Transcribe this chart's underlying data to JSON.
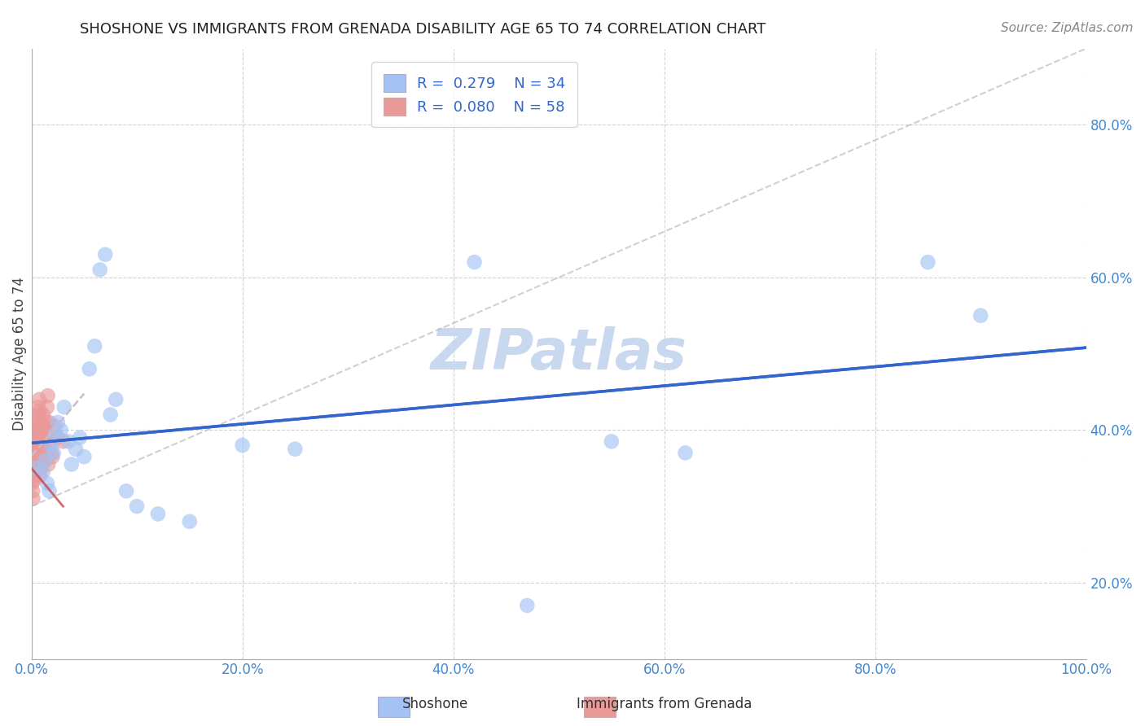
{
  "title": "SHOSHONE VS IMMIGRANTS FROM GRENADA DISABILITY AGE 65 TO 74 CORRELATION CHART",
  "source_text": "Source: ZipAtlas.com",
  "ylabel": "Disability Age 65 to 74",
  "xlim": [
    0.0,
    100.0
  ],
  "ylim": [
    10.0,
    90.0
  ],
  "xticks": [
    0.0,
    20.0,
    40.0,
    60.0,
    80.0,
    100.0
  ],
  "yticks": [
    20.0,
    40.0,
    60.0,
    80.0
  ],
  "watermark": "ZIPatlas",
  "shoshone_x": [
    0.5,
    1.1,
    1.3,
    1.5,
    1.7,
    1.9,
    2.1,
    2.3,
    2.5,
    2.8,
    3.1,
    3.5,
    3.8,
    4.2,
    4.6,
    5.0,
    5.5,
    6.0,
    6.5,
    7.0,
    7.5,
    8.0,
    9.0,
    10.0,
    12.0,
    15.0,
    20.0,
    25.0,
    42.0,
    47.0,
    55.0,
    62.0,
    85.0,
    90.0
  ],
  "shoshone_y": [
    35.0,
    34.5,
    36.0,
    33.0,
    32.0,
    38.0,
    37.0,
    39.5,
    41.0,
    40.0,
    43.0,
    38.5,
    35.5,
    37.5,
    39.0,
    36.5,
    48.0,
    51.0,
    61.0,
    63.0,
    42.0,
    44.0,
    32.0,
    30.0,
    29.0,
    28.0,
    38.0,
    37.5,
    62.0,
    17.0,
    38.5,
    37.0,
    62.0,
    55.0
  ],
  "grenada_x": [
    0.05,
    0.08,
    0.1,
    0.12,
    0.15,
    0.18,
    0.2,
    0.22,
    0.25,
    0.28,
    0.3,
    0.32,
    0.35,
    0.38,
    0.4,
    0.42,
    0.45,
    0.48,
    0.5,
    0.52,
    0.55,
    0.58,
    0.6,
    0.62,
    0.65,
    0.68,
    0.7,
    0.72,
    0.75,
    0.78,
    0.8,
    0.82,
    0.85,
    0.88,
    0.9,
    0.92,
    0.95,
    0.98,
    1.0,
    1.05,
    1.1,
    1.15,
    1.2,
    1.25,
    1.3,
    1.35,
    1.4,
    1.45,
    1.5,
    1.55,
    1.6,
    1.7,
    1.8,
    1.9,
    2.0,
    2.2,
    2.5,
    3.0
  ],
  "grenada_y": [
    35.0,
    33.0,
    34.5,
    32.0,
    31.0,
    36.0,
    37.5,
    35.5,
    34.0,
    33.5,
    38.0,
    36.5,
    37.0,
    35.0,
    39.0,
    38.5,
    40.0,
    37.0,
    41.0,
    39.5,
    42.0,
    40.5,
    38.0,
    36.0,
    43.0,
    41.5,
    39.0,
    37.5,
    44.0,
    42.5,
    35.5,
    34.0,
    38.5,
    37.0,
    36.5,
    35.0,
    39.5,
    38.0,
    40.5,
    39.0,
    42.0,
    40.5,
    37.5,
    36.0,
    38.5,
    37.0,
    41.0,
    39.5,
    43.0,
    44.5,
    35.5,
    41.0,
    38.5,
    37.0,
    36.5,
    40.5,
    39.0,
    38.5
  ],
  "blue_dot_color": "#a4c2f4",
  "pink_dot_color": "#ea9999",
  "blue_line_color": "#3366cc",
  "pink_line_color": "#cc4444",
  "dashed_line_color": "#ccbbcc",
  "grid_color": "#cccccc",
  "background_color": "#ffffff",
  "watermark_color": "#c8d8ee",
  "tick_color": "#4488cc",
  "axis_line_color": "#aaaaaa",
  "R_shoshone": 0.279,
  "N_shoshone": 34,
  "R_grenada": 0.08,
  "N_grenada": 58,
  "title_fontsize": 13,
  "axis_label_fontsize": 12,
  "tick_fontsize": 12,
  "legend_fontsize": 13,
  "watermark_fontsize": 50,
  "source_fontsize": 11
}
